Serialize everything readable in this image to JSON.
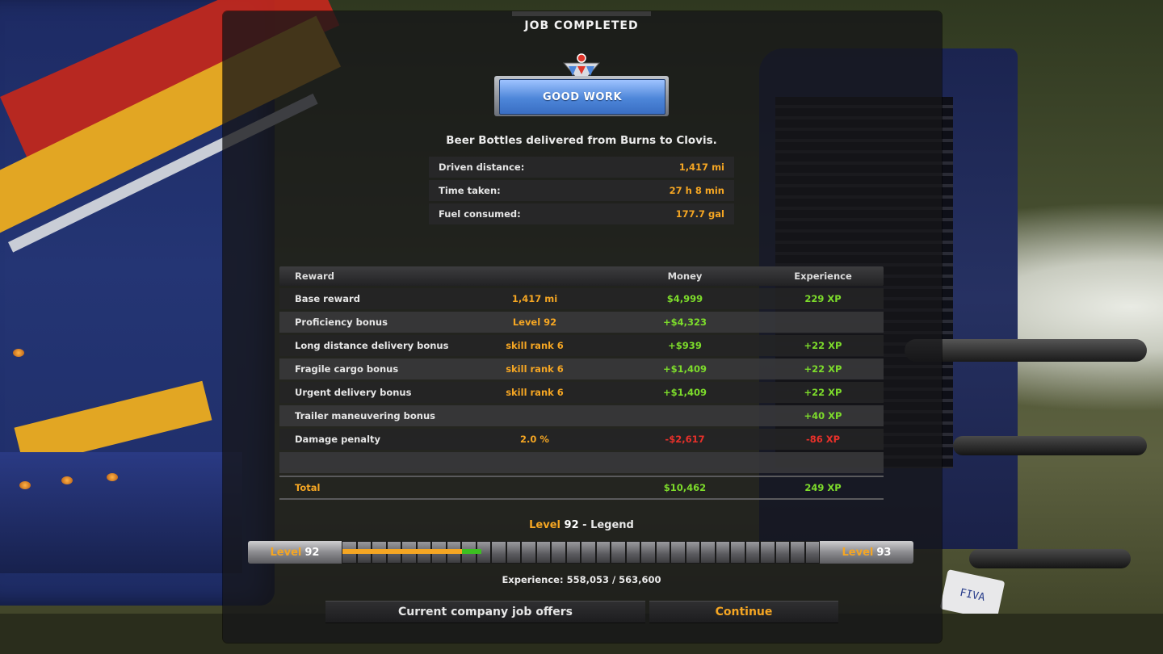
{
  "screen_title": "JOB COMPLETED",
  "badge": {
    "label": "GOOD WORK"
  },
  "delivery_summary": "Beer Bottles delivered from Burns to Clovis.",
  "stats": [
    {
      "label": "Driven distance:",
      "value": "1,417 mi"
    },
    {
      "label": "Time taken:",
      "value": "27 h 8 min"
    },
    {
      "label": "Fuel consumed:",
      "value": "177.7 gal"
    }
  ],
  "reward_table": {
    "headers": {
      "reward": "Reward",
      "money": "Money",
      "experience": "Experience"
    },
    "rows": [
      {
        "reward": "Base reward",
        "detail": "1,417 mi",
        "money": "$4,999",
        "experience": "229 XP"
      },
      {
        "reward": "Proficiency bonus",
        "detail": "Level 92",
        "money": "+$4,323",
        "experience": ""
      },
      {
        "reward": "Long distance delivery bonus",
        "detail": "skill rank 6",
        "money": "+$939",
        "experience": "+22 XP"
      },
      {
        "reward": "Fragile cargo bonus",
        "detail": "skill rank 6",
        "money": "+$1,409",
        "experience": "+22 XP"
      },
      {
        "reward": "Urgent delivery bonus",
        "detail": "skill rank 6",
        "money": "+$1,409",
        "experience": "+22 XP"
      },
      {
        "reward": "Trailer maneuvering bonus",
        "detail": "",
        "money": "",
        "experience": "+40 XP"
      },
      {
        "reward": "Damage penalty",
        "detail": "2.0 %",
        "money": "-$2,617",
        "experience": "-86 XP"
      }
    ],
    "total": {
      "label": "Total",
      "money": "$10,462",
      "experience": "249 XP"
    }
  },
  "level": {
    "title_level": "Level",
    "title_number": "92",
    "title_suffix": " - Legend",
    "current_word": "Level",
    "current_number": "92",
    "next_word": "Level",
    "next_number": "93",
    "segment_count": 32,
    "progress_before": 0.25,
    "progress_gain": 0.04,
    "experience_text": "Experience: 558,053 / 563,600"
  },
  "buttons": {
    "offers": "Current company job offers",
    "continue": "Continue"
  },
  "colors": {
    "accent": "#f5a623",
    "positive": "#7ddc2b",
    "negative": "#e8302a",
    "badge_blue": "#4d86d9"
  },
  "background": {
    "plate_text": "FIVA"
  }
}
